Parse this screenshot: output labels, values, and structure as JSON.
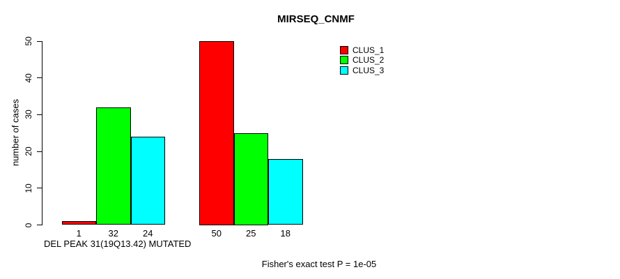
{
  "title": "MIRSEQ_CNMF",
  "footer": "Fisher's exact test P = 1e-05",
  "chart_data": {
    "type": "bar",
    "title": "MIRSEQ_CNMF",
    "ylabel": "number of cases",
    "ylim": [
      0,
      50
    ],
    "yticks": [
      0,
      10,
      20,
      30,
      40,
      50
    ],
    "categories": [
      "DEL PEAK 31(19Q13.42) MUTATED",
      ""
    ],
    "series": [
      {
        "name": "CLUS_1",
        "color": "#ff0000",
        "values": [
          1,
          50
        ]
      },
      {
        "name": "CLUS_2",
        "color": "#00ff00",
        "values": [
          32,
          25
        ]
      },
      {
        "name": "CLUS_3",
        "color": "#00ffff",
        "values": [
          24,
          18
        ]
      }
    ],
    "bar_value_labels_shown": true,
    "grid": false,
    "legend_position": "top-right",
    "annotation": "Fisher's exact test P = 1e-05"
  }
}
